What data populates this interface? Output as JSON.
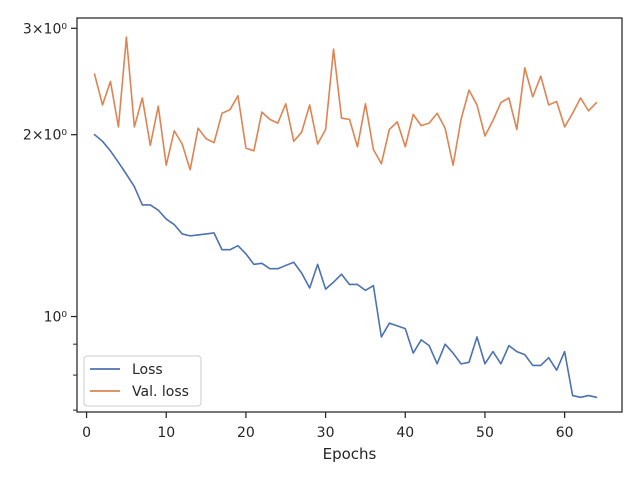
{
  "chart_data": {
    "type": "line",
    "title": "",
    "xlabel": "Epochs",
    "ylabel": "",
    "yscale": "log",
    "xlim": [
      -1.2,
      67.2
    ],
    "ylim": [
      0.695,
      3.12
    ],
    "xticks": [
      0,
      10,
      20,
      30,
      40,
      50,
      60
    ],
    "xtick_labels": [
      "0",
      "10",
      "20",
      "30",
      "40",
      "50",
      "60"
    ],
    "yticks_major": [
      1,
      2,
      3
    ],
    "ytick_labels": [
      "10⁰",
      "2×10⁰",
      "3×10⁰"
    ],
    "yticks_minor": [
      0.7,
      0.8,
      0.9
    ],
    "grid": false,
    "legend_position": "lower-left",
    "series": [
      {
        "name": "Loss",
        "color": "#4c72b0",
        "x": [
          1,
          2,
          3,
          4,
          5,
          6,
          7,
          8,
          9,
          10,
          11,
          12,
          13,
          14,
          15,
          16,
          17,
          18,
          19,
          20,
          21,
          22,
          23,
          24,
          25,
          26,
          27,
          28,
          29,
          30,
          31,
          32,
          33,
          34,
          35,
          36,
          37,
          38,
          39,
          40,
          41,
          42,
          43,
          44,
          45,
          46,
          47,
          48,
          49,
          50,
          51,
          52,
          53,
          54,
          55,
          56,
          57,
          58,
          59,
          60,
          61,
          62,
          63,
          64
        ],
        "values": [
          2.0,
          1.95,
          1.88,
          1.8,
          1.72,
          1.64,
          1.53,
          1.53,
          1.5,
          1.45,
          1.42,
          1.37,
          1.36,
          1.365,
          1.37,
          1.375,
          1.29,
          1.29,
          1.31,
          1.27,
          1.22,
          1.225,
          1.2,
          1.2,
          1.215,
          1.23,
          1.18,
          1.115,
          1.22,
          1.11,
          1.14,
          1.175,
          1.13,
          1.13,
          1.105,
          1.125,
          0.925,
          0.975,
          0.965,
          0.955,
          0.87,
          0.915,
          0.895,
          0.835,
          0.9,
          0.87,
          0.835,
          0.84,
          0.925,
          0.835,
          0.875,
          0.835,
          0.895,
          0.875,
          0.865,
          0.83,
          0.83,
          0.855,
          0.815,
          0.875,
          0.74,
          0.735,
          0.74,
          0.735
        ]
      },
      {
        "name": "Val. loss",
        "color": "#dd8452",
        "x": [
          1,
          2,
          3,
          4,
          5,
          6,
          7,
          8,
          9,
          10,
          11,
          12,
          13,
          14,
          15,
          16,
          17,
          18,
          19,
          20,
          21,
          22,
          23,
          24,
          25,
          26,
          27,
          28,
          29,
          30,
          31,
          32,
          33,
          34,
          35,
          36,
          37,
          38,
          39,
          40,
          41,
          42,
          43,
          44,
          45,
          46,
          47,
          48,
          49,
          50,
          51,
          52,
          53,
          54,
          55,
          56,
          57,
          58,
          59,
          60,
          61,
          62,
          63,
          64
        ],
        "values": [
          2.52,
          2.24,
          2.45,
          2.06,
          2.9,
          2.06,
          2.3,
          1.92,
          2.23,
          1.78,
          2.03,
          1.93,
          1.75,
          2.05,
          1.97,
          1.94,
          2.17,
          2.2,
          2.32,
          1.9,
          1.88,
          2.18,
          2.12,
          2.09,
          2.25,
          1.95,
          2.02,
          2.24,
          1.93,
          2.04,
          2.77,
          2.13,
          2.12,
          1.91,
          2.25,
          1.89,
          1.79,
          2.04,
          2.1,
          1.91,
          2.16,
          2.07,
          2.09,
          2.17,
          2.05,
          1.78,
          2.12,
          2.37,
          2.24,
          1.99,
          2.11,
          2.26,
          2.3,
          2.04,
          2.58,
          2.31,
          2.5,
          2.24,
          2.27,
          2.06,
          2.17,
          2.3,
          2.19,
          2.26
        ]
      }
    ]
  }
}
